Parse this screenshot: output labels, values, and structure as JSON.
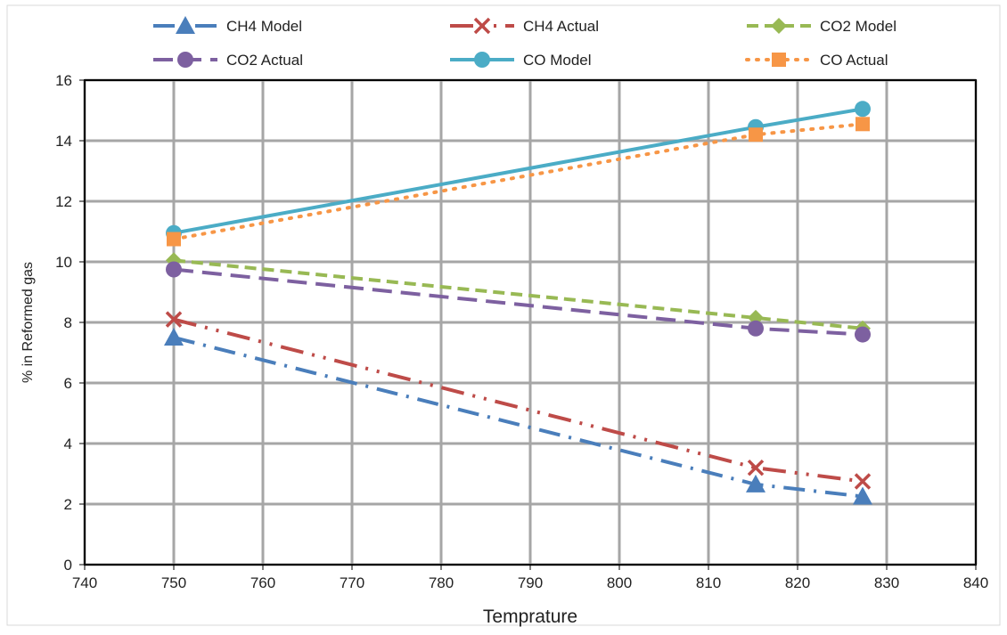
{
  "chart_data": {
    "type": "line",
    "title": "",
    "xlabel": "Temprature",
    "ylabel": "% in Reformed gas",
    "xlim": [
      740,
      840
    ],
    "ylim": [
      0,
      16
    ],
    "xticks": [
      740,
      750,
      760,
      770,
      780,
      790,
      800,
      810,
      820,
      830,
      840
    ],
    "yticks": [
      0,
      2,
      4,
      6,
      8,
      10,
      12,
      14,
      16
    ],
    "grid": true,
    "legend_position": "top",
    "series": [
      {
        "name": "CH4 Model",
        "x": [
          750,
          815.3,
          827.3
        ],
        "y": [
          7.5,
          2.65,
          2.25
        ],
        "color": "#4a7ebb",
        "marker": "triangle",
        "dash": "dash-dot"
      },
      {
        "name": "CH4 Actual",
        "x": [
          750,
          815.3,
          827.3
        ],
        "y": [
          8.1,
          3.2,
          2.75
        ],
        "color": "#be4b48",
        "marker": "x",
        "dash": "long-dash-dot"
      },
      {
        "name": "CO2 Model",
        "x": [
          750,
          815.3,
          827.3
        ],
        "y": [
          10.05,
          8.15,
          7.8
        ],
        "color": "#98b954",
        "marker": "diamond",
        "dash": "dash"
      },
      {
        "name": "CO2 Actual",
        "x": [
          750,
          815.3,
          827.3
        ],
        "y": [
          9.75,
          7.8,
          7.6
        ],
        "color": "#7d60a0",
        "marker": "circle",
        "dash": "long-dash"
      },
      {
        "name": "CO Model",
        "x": [
          750,
          815.3,
          827.3
        ],
        "y": [
          10.95,
          14.45,
          15.05
        ],
        "color": "#4bacc6",
        "marker": "circle",
        "dash": "solid"
      },
      {
        "name": "CO Actual",
        "x": [
          750,
          815.3,
          827.3
        ],
        "y": [
          10.75,
          14.2,
          14.55
        ],
        "color": "#f79646",
        "marker": "square",
        "dash": "dot"
      }
    ]
  }
}
